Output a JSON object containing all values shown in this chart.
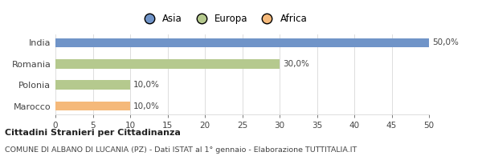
{
  "categories": [
    "India",
    "Romania",
    "Polonia",
    "Marocco"
  ],
  "values": [
    50.0,
    30.0,
    10.0,
    10.0
  ],
  "colors": [
    "#7094c8",
    "#b5c98e",
    "#b5c98e",
    "#f5b97a"
  ],
  "legend": [
    {
      "label": "Asia",
      "color": "#7094c8"
    },
    {
      "label": "Europa",
      "color": "#b5c98e"
    },
    {
      "label": "Africa",
      "color": "#f5b97a"
    }
  ],
  "xlim": [
    0,
    50
  ],
  "xticks": [
    0,
    5,
    10,
    15,
    20,
    25,
    30,
    35,
    40,
    45,
    50
  ],
  "title_bold": "Cittadini Stranieri per Cittadinanza",
  "subtitle": "COMUNE DI ALBANO DI LUCANIA (PZ) - Dati ISTAT al 1° gennaio - Elaborazione TUTTITALIA.IT",
  "bg_color": "#ffffff",
  "grid_color": "#d8d8d8",
  "text_color": "#444444",
  "bar_height": 0.45
}
